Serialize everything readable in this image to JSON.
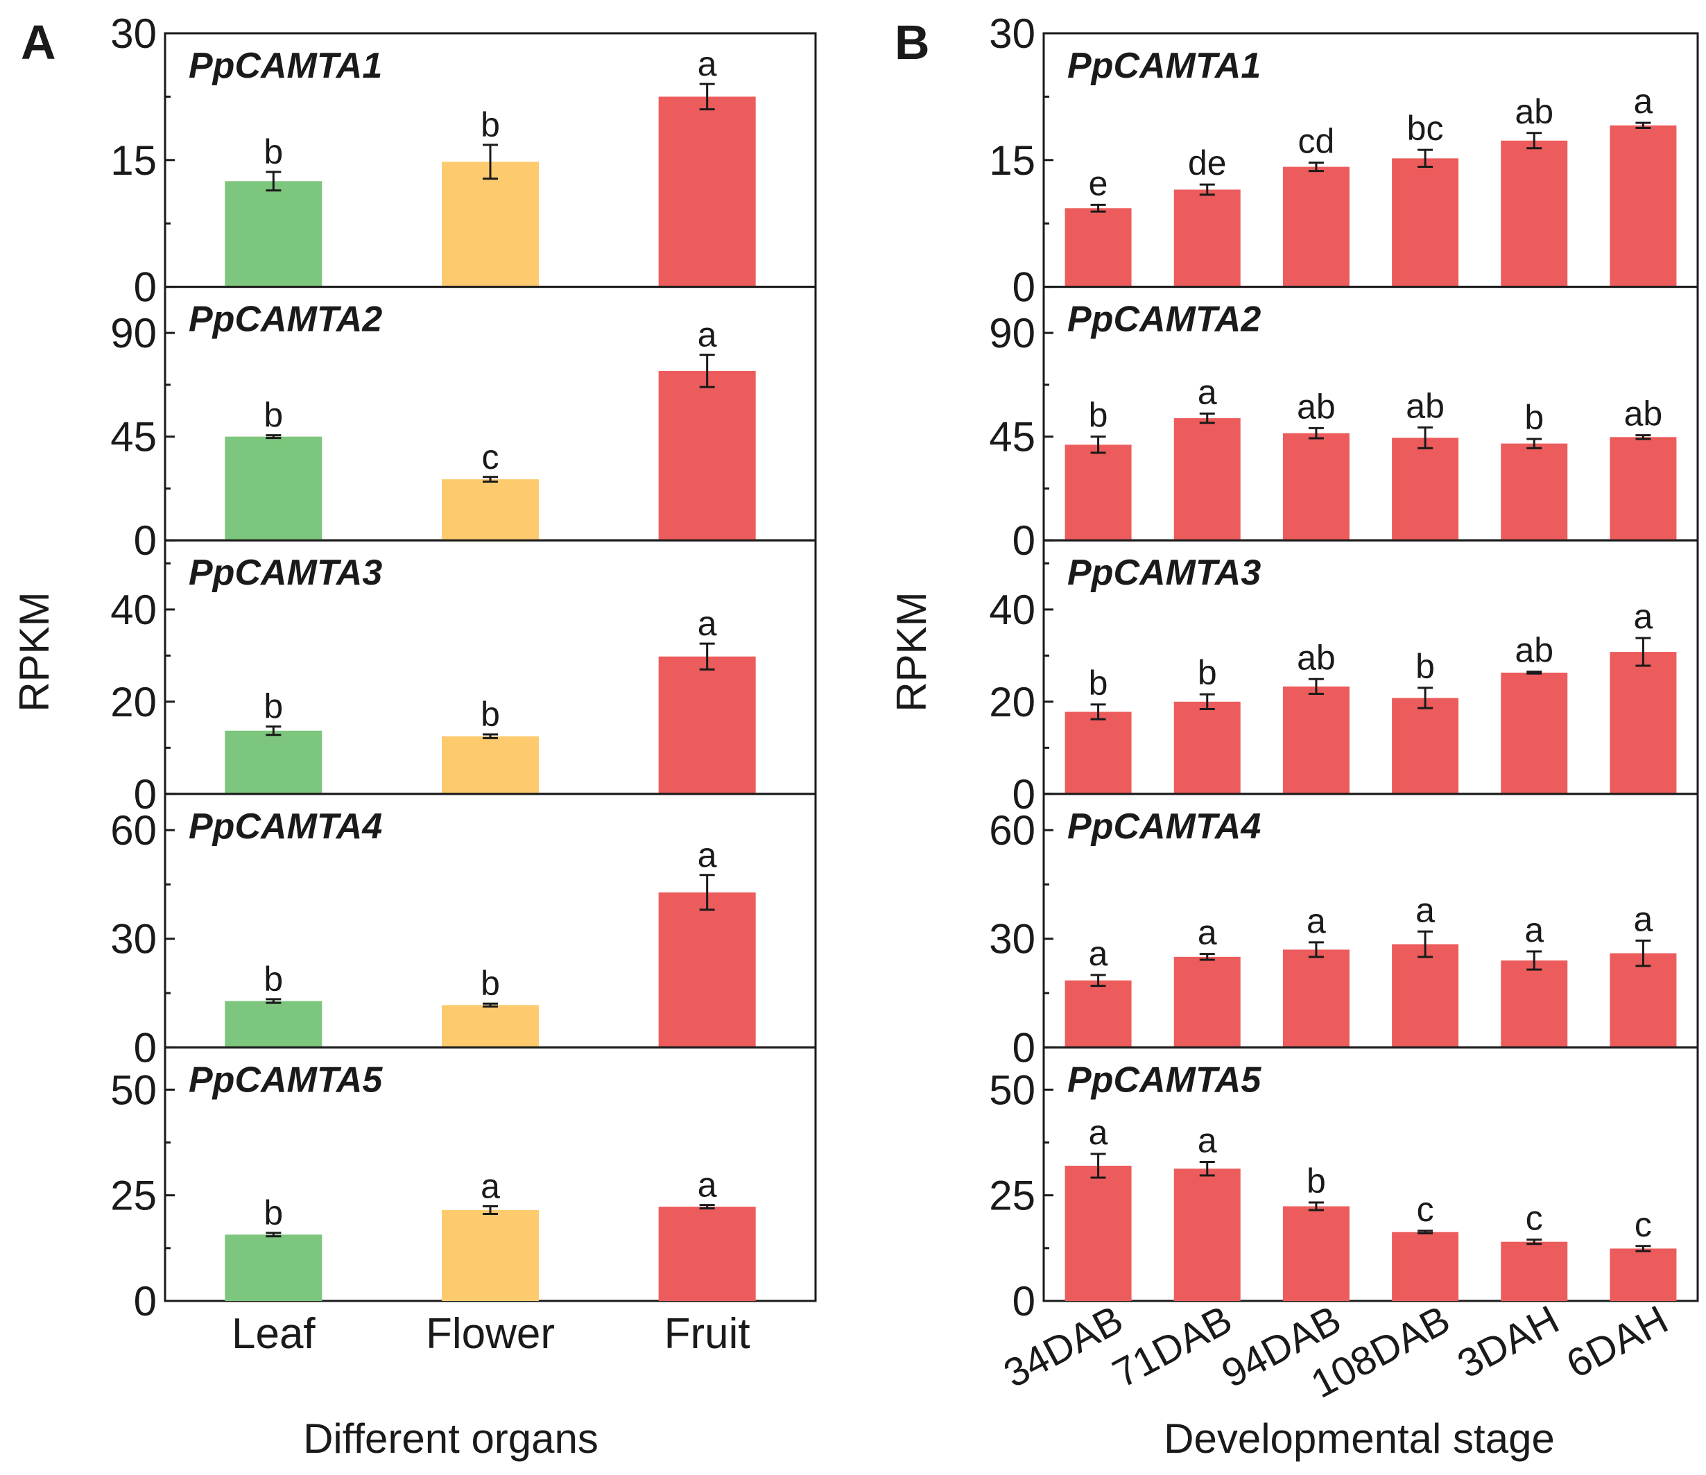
{
  "chart_data": [
    {
      "type": "bar",
      "panel": "A",
      "xlabel": "Different organs",
      "ylabel": "RPKM",
      "categories": [
        "Leaf",
        "Flower",
        "Fruit"
      ],
      "colors": [
        "#7dc67d",
        "#fdcb6e",
        "#ec5c5c"
      ],
      "subplots": [
        {
          "gene": "PpCAMTA1",
          "ylim": [
            0,
            30
          ],
          "yticks": [
            0,
            15,
            30
          ],
          "values": [
            12.5,
            14.8,
            22.5
          ],
          "errors": [
            1.1,
            2.0,
            1.5
          ],
          "letters": [
            "b",
            "b",
            "a"
          ]
        },
        {
          "gene": "PpCAMTA2",
          "ylim": [
            0,
            110
          ],
          "yticks": [
            0,
            45,
            90
          ],
          "values": [
            45.0,
            26.5,
            73.5
          ],
          "errors": [
            0.6,
            1.0,
            7.0
          ],
          "letters": [
            "b",
            "c",
            "a"
          ]
        },
        {
          "gene": "PpCAMTA3",
          "ylim": [
            0,
            55
          ],
          "yticks": [
            0,
            20,
            40
          ],
          "values": [
            13.7,
            12.5,
            29.8
          ],
          "errors": [
            0.9,
            0.4,
            2.8
          ],
          "letters": [
            "b",
            "b",
            "a"
          ]
        },
        {
          "gene": "PpCAMTA4",
          "ylim": [
            0,
            70
          ],
          "yticks": [
            0,
            30,
            60
          ],
          "values": [
            12.8,
            11.7,
            42.8
          ],
          "errors": [
            0.5,
            0.4,
            4.8
          ],
          "letters": [
            "b",
            "b",
            "a"
          ]
        },
        {
          "gene": "PpCAMTA5",
          "ylim": [
            0,
            60
          ],
          "yticks": [
            0,
            25,
            50
          ],
          "values": [
            15.7,
            21.5,
            22.3
          ],
          "errors": [
            0.4,
            0.9,
            0.4
          ],
          "letters": [
            "b",
            "a",
            "a"
          ]
        }
      ]
    },
    {
      "type": "bar",
      "panel": "B",
      "xlabel": "Developmental stage",
      "ylabel": "RPKM",
      "categories": [
        "34DAB",
        "71DAB",
        "94DAB",
        "108DAB",
        "3DAH",
        "6DAH"
      ],
      "colors": [
        "#ec5c5c"
      ],
      "subplots": [
        {
          "gene": "PpCAMTA1",
          "ylim": [
            0,
            30
          ],
          "yticks": [
            0,
            15,
            30
          ],
          "values": [
            9.3,
            11.5,
            14.2,
            15.2,
            17.3,
            19.1
          ],
          "errors": [
            0.4,
            0.6,
            0.5,
            1.0,
            0.9,
            0.3
          ],
          "letters": [
            "e",
            "de",
            "cd",
            "bc",
            "ab",
            "a"
          ]
        },
        {
          "gene": "PpCAMTA2",
          "ylim": [
            0,
            110
          ],
          "yticks": [
            0,
            45,
            90
          ],
          "values": [
            41.5,
            53.0,
            46.5,
            44.5,
            42.0,
            44.8
          ],
          "errors": [
            3.5,
            2.0,
            2.2,
            4.5,
            2.0,
            0.8
          ],
          "letters": [
            "b",
            "a",
            "ab",
            "ab",
            "b",
            "ab"
          ]
        },
        {
          "gene": "PpCAMTA3",
          "ylim": [
            0,
            55
          ],
          "yticks": [
            0,
            20,
            40
          ],
          "values": [
            17.8,
            20.0,
            23.3,
            20.8,
            26.3,
            30.8
          ],
          "errors": [
            1.6,
            1.6,
            1.6,
            2.2,
            0.2,
            3.0
          ],
          "letters": [
            "b",
            "b",
            "ab",
            "b",
            "ab",
            "a"
          ]
        },
        {
          "gene": "PpCAMTA4",
          "ylim": [
            0,
            70
          ],
          "yticks": [
            0,
            30,
            60
          ],
          "values": [
            18.5,
            25.0,
            27.0,
            28.5,
            24.0,
            26.0
          ],
          "errors": [
            1.5,
            0.8,
            2.0,
            3.5,
            2.5,
            3.5
          ],
          "letters": [
            "a",
            "a",
            "a",
            "a",
            "a",
            "a"
          ]
        },
        {
          "gene": "PpCAMTA5",
          "ylim": [
            0,
            60
          ],
          "yticks": [
            0,
            25,
            50
          ],
          "values": [
            32.0,
            31.3,
            22.4,
            16.3,
            14.0,
            12.4
          ],
          "errors": [
            2.8,
            1.6,
            0.9,
            0.3,
            0.5,
            0.6
          ],
          "letters": [
            "a",
            "a",
            "b",
            "c",
            "c",
            "c"
          ]
        }
      ]
    }
  ]
}
